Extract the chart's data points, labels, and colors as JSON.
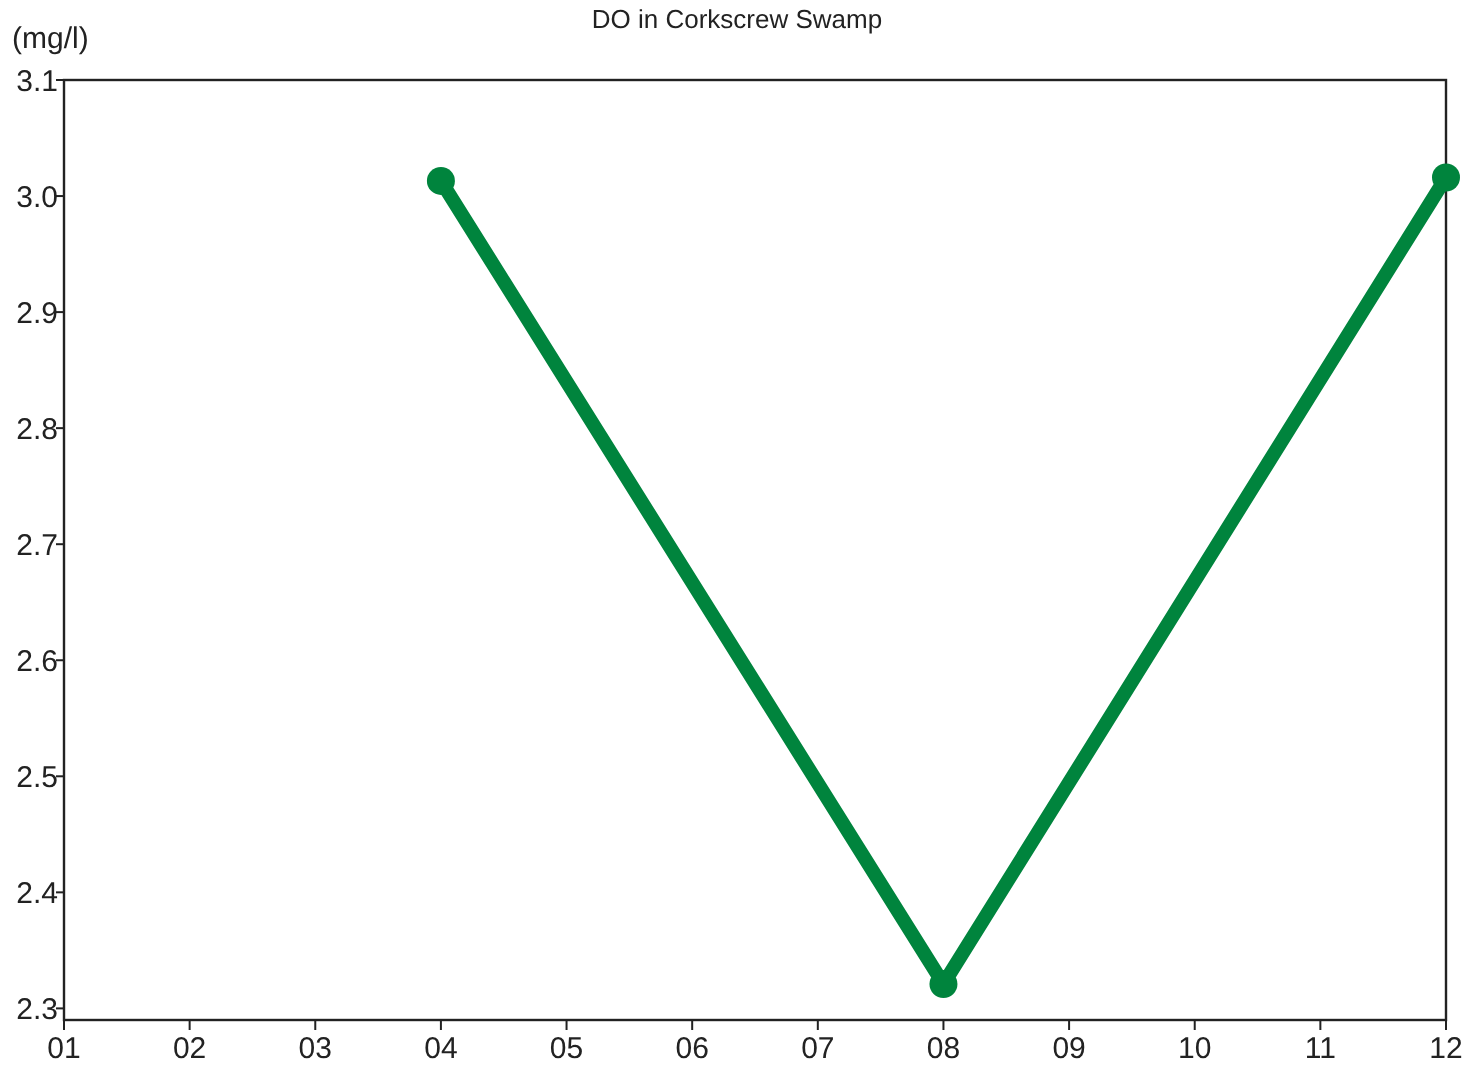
{
  "chart_data": {
    "type": "line",
    "title": "DO in Corkscrew Swamp",
    "ylabel": "(mg/l)",
    "x": [
      4,
      8,
      12
    ],
    "series": [
      {
        "color": "#00843d",
        "values": [
          3.013,
          2.321,
          3.016
        ]
      }
    ],
    "xlim": [
      1,
      12
    ],
    "xticks": [
      {
        "value": 1,
        "label": "01"
      },
      {
        "value": 2,
        "label": "02"
      },
      {
        "value": 3,
        "label": "03"
      },
      {
        "value": 4,
        "label": "04"
      },
      {
        "value": 5,
        "label": "05"
      },
      {
        "value": 6,
        "label": "06"
      },
      {
        "value": 7,
        "label": "07"
      },
      {
        "value": 8,
        "label": "08"
      },
      {
        "value": 9,
        "label": "09"
      },
      {
        "value": 10,
        "label": "10"
      },
      {
        "value": 11,
        "label": "11"
      },
      {
        "value": 12,
        "label": "12"
      }
    ],
    "ylim": [
      2.29,
      3.1
    ],
    "yticks": [
      {
        "value": 2.3,
        "label": "2.3"
      },
      {
        "value": 2.4,
        "label": "2.4"
      },
      {
        "value": 2.5,
        "label": "2.5"
      },
      {
        "value": 2.6,
        "label": "2.6"
      },
      {
        "value": 2.7,
        "label": "2.7"
      },
      {
        "value": 2.8,
        "label": "2.8"
      },
      {
        "value": 2.9,
        "label": "2.9"
      },
      {
        "value": 3.0,
        "label": "3.0"
      },
      {
        "value": 3.1,
        "label": "3.1"
      }
    ],
    "marker": "circle",
    "line_style": "solid",
    "grid": false
  }
}
